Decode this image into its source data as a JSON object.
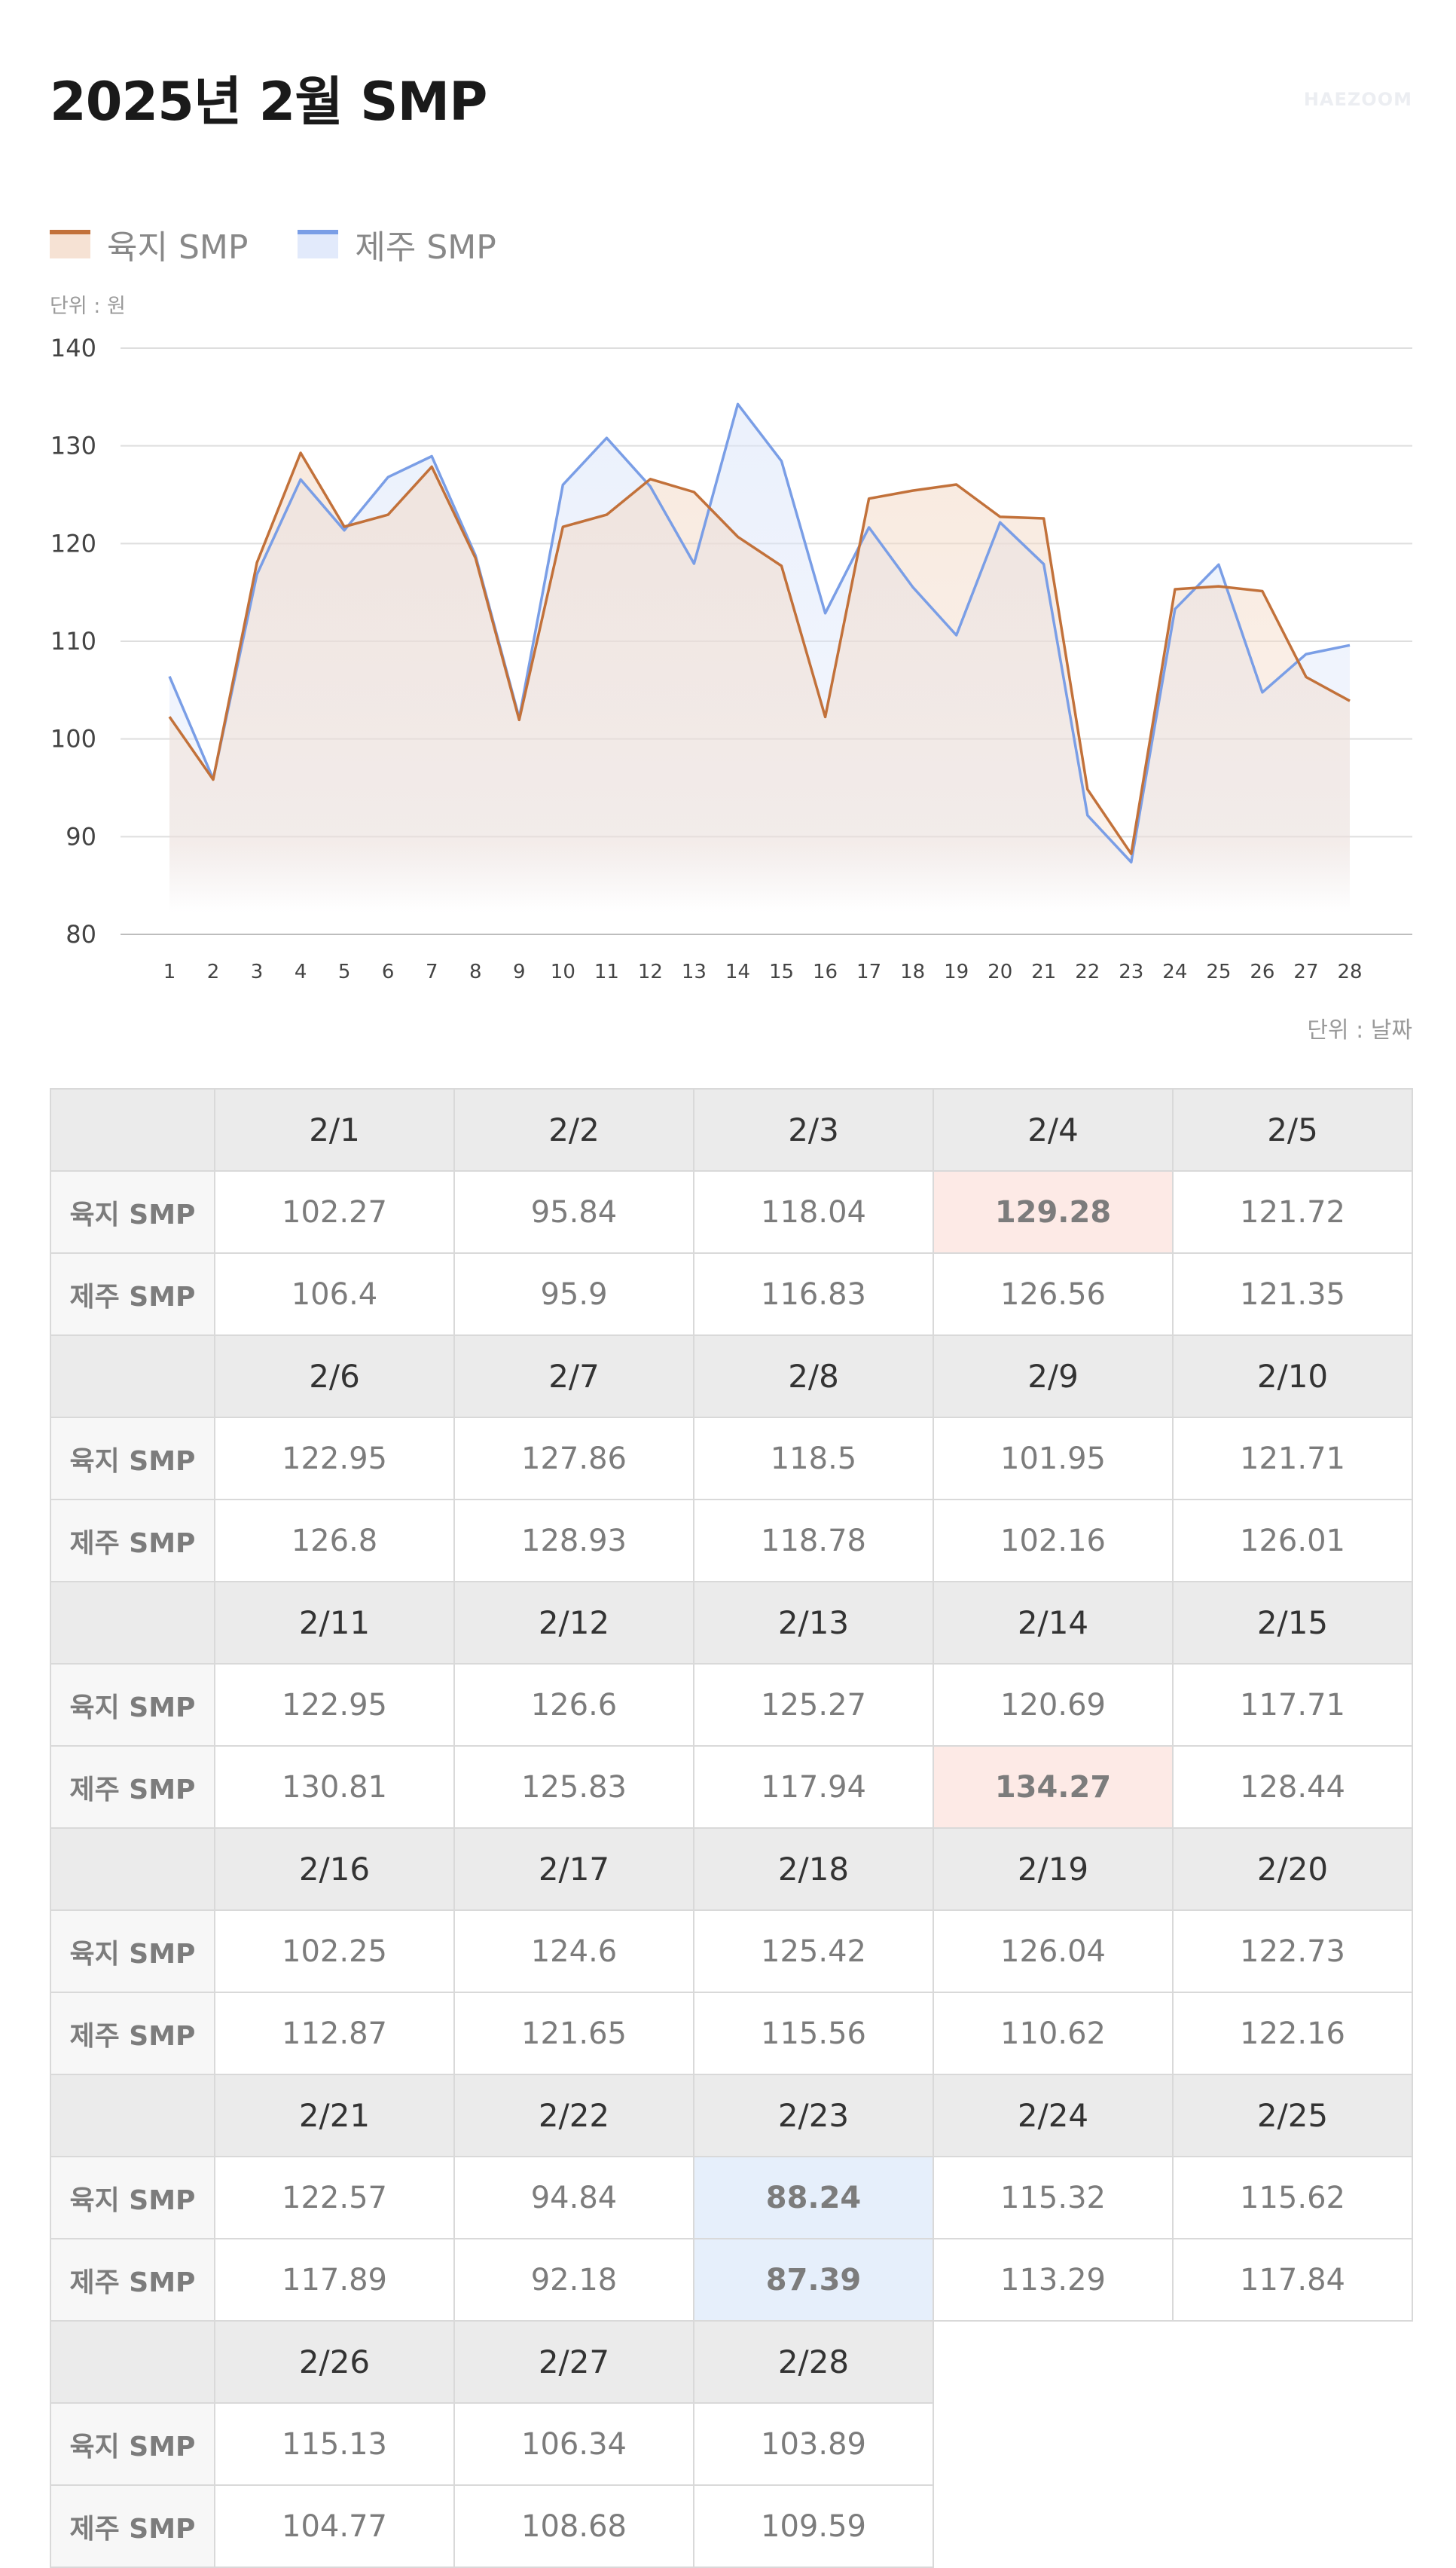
{
  "page": {
    "title": "2025년 2월 SMP",
    "brand": "HAEZOOM",
    "unit_y": "단위 : 원",
    "unit_x": "단위 : 날짜"
  },
  "legend": [
    {
      "label": "육지 SMP",
      "color": "#c2713a"
    },
    {
      "label": "제주 SMP",
      "color": "#7a9ee6"
    }
  ],
  "chart_data": {
    "type": "line",
    "x": [
      1,
      2,
      3,
      4,
      5,
      6,
      7,
      8,
      9,
      10,
      11,
      12,
      13,
      14,
      15,
      16,
      17,
      18,
      19,
      20,
      21,
      22,
      23,
      24,
      25,
      26,
      27,
      28
    ],
    "ylim": [
      80,
      140
    ],
    "yticks": [
      80,
      90,
      100,
      110,
      120,
      130,
      140
    ],
    "grid": true,
    "legend_position": "top-left",
    "series": [
      {
        "name": "육지 SMP",
        "color": "#c2713a",
        "fill": "#f3d9c6",
        "values": [
          102.27,
          95.84,
          118.04,
          129.28,
          121.72,
          122.95,
          127.86,
          118.5,
          101.95,
          121.71,
          122.95,
          126.6,
          125.27,
          120.69,
          117.71,
          102.25,
          124.6,
          125.42,
          126.04,
          122.73,
          122.57,
          94.84,
          88.24,
          115.32,
          115.62,
          115.13,
          106.34,
          103.89
        ]
      },
      {
        "name": "제주 SMP",
        "color": "#7a9ee6",
        "fill": "#dbe5fa",
        "values": [
          106.4,
          95.9,
          116.83,
          126.56,
          121.35,
          126.8,
          128.93,
          118.78,
          102.16,
          126.01,
          130.81,
          125.83,
          117.94,
          134.27,
          128.44,
          112.87,
          121.65,
          115.56,
          110.62,
          122.16,
          117.89,
          92.18,
          87.39,
          113.29,
          117.84,
          104.77,
          108.68,
          109.59
        ]
      }
    ]
  },
  "table": {
    "row_labels": {
      "land": "육지 SMP",
      "jeju": "제주 SMP"
    },
    "blocks": [
      {
        "dates": [
          "2/1",
          "2/2",
          "2/3",
          "2/4",
          "2/5"
        ],
        "land": [
          "102.27",
          "95.84",
          "118.04",
          "129.28",
          "121.72"
        ],
        "jeju": [
          "106.4",
          "95.9",
          "116.83",
          "126.56",
          "121.35"
        ]
      },
      {
        "dates": [
          "2/6",
          "2/7",
          "2/8",
          "2/9",
          "2/10"
        ],
        "land": [
          "122.95",
          "127.86",
          "118.5",
          "101.95",
          "121.71"
        ],
        "jeju": [
          "126.8",
          "128.93",
          "118.78",
          "102.16",
          "126.01"
        ]
      },
      {
        "dates": [
          "2/11",
          "2/12",
          "2/13",
          "2/14",
          "2/15"
        ],
        "land": [
          "122.95",
          "126.6",
          "125.27",
          "120.69",
          "117.71"
        ],
        "jeju": [
          "130.81",
          "125.83",
          "117.94",
          "134.27",
          "128.44"
        ]
      },
      {
        "dates": [
          "2/16",
          "2/17",
          "2/18",
          "2/19",
          "2/20"
        ],
        "land": [
          "102.25",
          "124.6",
          "125.42",
          "126.04",
          "122.73"
        ],
        "jeju": [
          "112.87",
          "121.65",
          "115.56",
          "110.62",
          "122.16"
        ]
      },
      {
        "dates": [
          "2/21",
          "2/22",
          "2/23",
          "2/24",
          "2/25"
        ],
        "land": [
          "122.57",
          "94.84",
          "88.24",
          "115.32",
          "115.62"
        ],
        "jeju": [
          "117.89",
          "92.18",
          "87.39",
          "113.29",
          "117.84"
        ]
      },
      {
        "dates": [
          "2/26",
          "2/27",
          "2/28"
        ],
        "land": [
          "115.13",
          "106.34",
          "103.89"
        ],
        "jeju": [
          "104.77",
          "108.68",
          "109.59"
        ]
      }
    ],
    "highlights": {
      "max": [
        {
          "block": 0,
          "row": "land",
          "col": 3
        },
        {
          "block": 2,
          "row": "jeju",
          "col": 3
        }
      ],
      "min": [
        {
          "block": 4,
          "row": "land",
          "col": 2
        },
        {
          "block": 4,
          "row": "jeju",
          "col": 2
        }
      ]
    }
  }
}
